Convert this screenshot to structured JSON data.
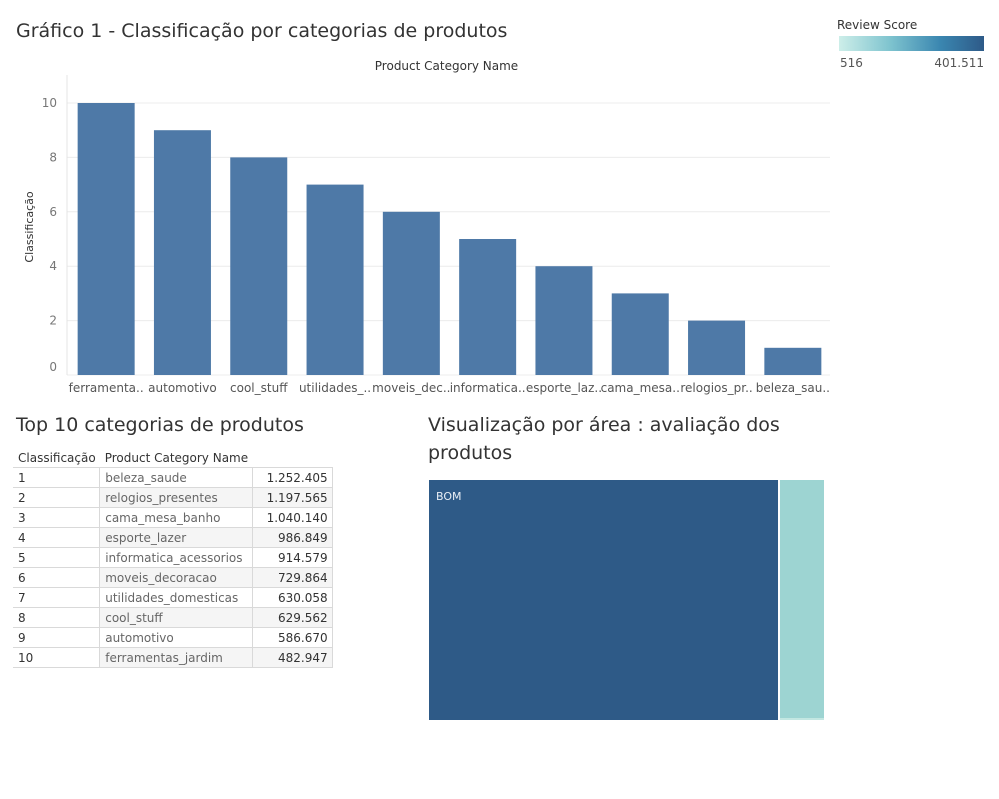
{
  "title": "Gráfico 1 - Classificação por categorias de produtos",
  "legend": {
    "title": "Review Score",
    "min_label": "516",
    "max_label": "401.511",
    "colors": [
      "#cdeee9",
      "#7fc4cf",
      "#3a86b0",
      "#2e5a88"
    ]
  },
  "chart_data": [
    {
      "type": "bar",
      "title": "Product Category Name",
      "xlabel": "",
      "ylabel": "Classificação",
      "ylim": [
        0,
        10
      ],
      "yticks": [
        0,
        2,
        4,
        6,
        8,
        10
      ],
      "grid": true,
      "bar_color": "#4e79a7",
      "categories": [
        "ferramenta..",
        "automotivo",
        "cool_stuff",
        "utilidades_..",
        "moveis_dec..",
        "informatica..",
        "esporte_laz..",
        "cama_mesa..",
        "relogios_pr..",
        "beleza_sau.."
      ],
      "values": [
        10,
        9,
        8,
        7,
        6,
        5,
        4,
        3,
        2,
        1
      ]
    },
    {
      "type": "table",
      "title": "Top 10 categorias de produtos",
      "columns": [
        "Classificação",
        "Product Category Name",
        ""
      ],
      "rows": [
        [
          "1",
          "beleza_saude",
          "1.252.405"
        ],
        [
          "2",
          "relogios_presentes",
          "1.197.565"
        ],
        [
          "3",
          "cama_mesa_banho",
          "1.040.140"
        ],
        [
          "4",
          "esporte_lazer",
          "986.849"
        ],
        [
          "5",
          "informatica_acessorios",
          "914.579"
        ],
        [
          "6",
          "moveis_decoracao",
          "729.864"
        ],
        [
          "7",
          "utilidades_domesticas",
          "630.058"
        ],
        [
          "8",
          "cool_stuff",
          "629.562"
        ],
        [
          "9",
          "automotivo",
          "586.670"
        ],
        [
          "10",
          "ferramentas_jardim",
          "482.947"
        ]
      ]
    },
    {
      "type": "treemap",
      "title": "Visualização por área : avaliação dos produtos",
      "items": [
        {
          "label": "BOM",
          "color": "#2e5a87"
        },
        {
          "label": "",
          "color": "#9dd4d2"
        }
      ]
    }
  ]
}
